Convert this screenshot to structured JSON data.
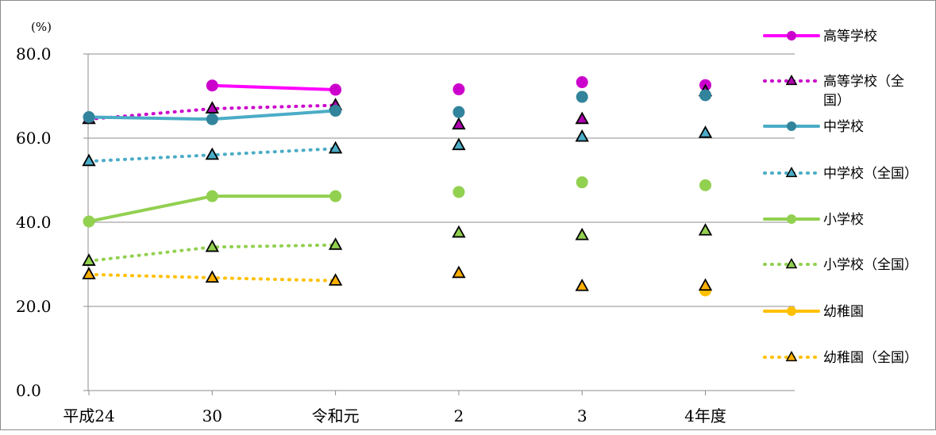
{
  "chart_data": {
    "type": "line",
    "unit_label": "(%)",
    "ylim": [
      0,
      80
    ],
    "y_ticks": [
      "0.0",
      "20.0",
      "40.0",
      "60.0",
      "80.0"
    ],
    "categories": [
      "平成24",
      "30",
      "令和元",
      "2",
      "3",
      "4年度"
    ],
    "grid": true,
    "legend_position": "right",
    "series": [
      {
        "name": "高等学校",
        "style": "solid",
        "marker": "circle",
        "color": "#ff00ff",
        "marker_color": "#cc00cc",
        "values": [
          null,
          72.5,
          71.5,
          71.6,
          73.3,
          72.6
        ]
      },
      {
        "name": "高等学校（全国）",
        "style": "dotted",
        "marker": "triangle",
        "color": "#cc00cc",
        "marker_color": "#b000b0",
        "values": [
          64.5,
          67.0,
          67.8,
          63.2,
          64.5,
          71.1
        ]
      },
      {
        "name": "中学校",
        "style": "solid",
        "marker": "circle",
        "color": "#4bacc6",
        "marker_color": "#31849b",
        "values": [
          65.0,
          64.5,
          66.5,
          66.2,
          69.8,
          70.2
        ]
      },
      {
        "name": "中学校（全国）",
        "style": "dotted",
        "marker": "triangle",
        "color": "#4bacc6",
        "marker_color": "#4bacc6",
        "values": [
          54.5,
          56.0,
          57.5,
          58.3,
          60.3,
          61.2
        ]
      },
      {
        "name": "小学校",
        "style": "solid",
        "marker": "circle",
        "color": "#92d050",
        "marker_color": "#92d050",
        "values": [
          40.2,
          46.2,
          46.2,
          47.2,
          49.5,
          48.8
        ]
      },
      {
        "name": "小学校（全国）",
        "style": "dotted",
        "marker": "triangle",
        "color": "#92d050",
        "marker_color": "#92d050",
        "values": [
          30.8,
          34.1,
          34.6,
          37.5,
          36.9,
          38.0
        ]
      },
      {
        "name": "幼稚園",
        "style": "solid",
        "marker": "circle",
        "color": "#ffc000",
        "marker_color": "#ffc000",
        "values": [
          null,
          null,
          null,
          null,
          null,
          23.8
        ]
      },
      {
        "name": "幼稚園（全国）",
        "style": "dotted",
        "marker": "triangle",
        "color": "#ffc000",
        "marker_color": "#ffb000",
        "values": [
          27.6,
          26.8,
          26.1,
          27.9,
          24.8,
          24.9
        ]
      }
    ]
  },
  "legend": [
    {
      "label": "高等学校"
    },
    {
      "label": "高等学校（全",
      "label2": "国）"
    },
    {
      "label": "中学校"
    },
    {
      "label": "中学校（全国）"
    },
    {
      "label": "小学校"
    },
    {
      "label": "小学校（全国）"
    },
    {
      "label": "幼稚園"
    },
    {
      "label": "幼稚園（全国）"
    }
  ]
}
